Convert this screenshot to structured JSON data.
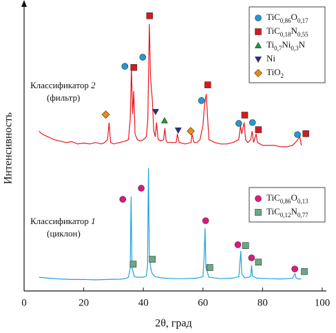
{
  "chart_data": {
    "type": "line",
    "xlabel": "2θ, град",
    "ylabel": "Интенсивность",
    "xlim": [
      0,
      100
    ],
    "xticks": [
      0,
      20,
      40,
      60,
      80,
      100
    ],
    "ylim": [
      0,
      100
    ],
    "series": [
      {
        "color": "#e8141c",
        "annotation": [
          "Классификатор 2",
          "(фильтр)"
        ],
        "legend": "upper right",
        "x": [
          5,
          6,
          7,
          8,
          9,
          10,
          12,
          14,
          16,
          18,
          20,
          22,
          24,
          26,
          27,
          28,
          28.5,
          29,
          30,
          32,
          34,
          35,
          35.6,
          36,
          36.4,
          36.8,
          37.2,
          38,
          39,
          40,
          41,
          41.5,
          42,
          42.4,
          43,
          43.5,
          44,
          44.4,
          45,
          46,
          46.8,
          47.2,
          47.6,
          48,
          50,
          51,
          51.4,
          52,
          54,
          56,
          56.3,
          57,
          58,
          59,
          60,
          60.5,
          61.1,
          61.6,
          62,
          64,
          66,
          68,
          70,
          72,
          72.6,
          73,
          73.8,
          74.3,
          75,
          76,
          76.5,
          77,
          77.8,
          78.3,
          80,
          82,
          84,
          86,
          88,
          90,
          91,
          92.5,
          93
        ],
        "values": [
          56,
          55,
          54.5,
          54,
          53.5,
          53,
          52.5,
          52,
          52.3,
          51.5,
          51.8,
          51.5,
          52,
          51.5,
          52,
          53,
          59,
          52,
          51.5,
          52,
          52.5,
          53,
          60,
          78,
          62,
          70,
          55,
          53,
          52.5,
          53,
          54,
          60,
          93.5,
          75,
          67,
          56,
          54,
          59,
          53,
          52.5,
          53,
          57,
          53,
          52,
          52,
          52,
          55,
          52,
          51.5,
          52,
          55,
          52,
          52,
          53,
          58,
          65,
          69,
          60,
          53,
          52,
          51.5,
          51.5,
          52,
          53,
          58,
          55,
          59,
          53,
          52,
          53,
          56,
          52,
          55,
          52,
          51,
          51,
          51,
          50.5,
          50.5,
          51,
          52,
          54,
          51
        ],
        "phases": [
          {
            "name": "TiC0,86O0,17",
            "marker": "circle",
            "color": "#1e9ad6",
            "x": [
              33.8,
              39.8,
              59.5,
              72.0,
              76.6,
              91.7
            ],
            "values": [
              78.7,
              81.9,
              66.7,
              58.7,
              59.0,
              54.8
            ]
          },
          {
            "name": "TiC0,18N0,55",
            "marker": "square",
            "color": "#d7191f",
            "x": [
              36.8,
              42.1,
              61.6,
              74.0,
              78.6,
              94.5
            ],
            "values": [
              78.3,
              96.4,
              72.2,
              61.6,
              56.5,
              55.1
            ]
          },
          {
            "name": "Ti0,7Ni0,3N",
            "marker": "triangle-up",
            "color": "#1a9a3a",
            "x": [
              47.1
            ],
            "values": [
              59.7
            ]
          },
          {
            "name": "Ni",
            "marker": "triangle-down",
            "color": "#2c2c8c",
            "x": [
              44.1,
              51.7
            ],
            "values": [
              62.8,
              56.3
            ]
          },
          {
            "name": "TiO2",
            "marker": "diamond",
            "color": "#f08a0b",
            "x": [
              27.4,
              55.9
            ],
            "values": [
              61.8,
              56.0
            ]
          }
        ]
      },
      {
        "color": "#1aa3dd",
        "annotation": [
          "Классификатор 1",
          "(циклон)"
        ],
        "legend": "center right",
        "x": [
          5,
          8,
          12,
          16,
          20,
          24,
          28,
          32,
          34,
          35,
          35.6,
          35.9,
          36.2,
          37,
          38,
          40,
          41,
          41.4,
          41.7,
          42,
          42.5,
          43,
          44,
          46,
          50,
          54,
          58,
          60,
          60.4,
          60.7,
          61,
          62,
          66,
          70,
          72,
          72.4,
          72.7,
          73,
          74,
          75,
          76,
          76.3,
          76.6,
          78,
          82,
          86,
          90,
          90.6,
          90.9,
          91.2,
          92,
          93
        ],
        "values": [
          4.8,
          4.5,
          4.2,
          4.0,
          4.0,
          3.9,
          4.0,
          4.1,
          4.3,
          4.8,
          8,
          33,
          8,
          5,
          4.8,
          4.8,
          5.2,
          9,
          43,
          12,
          8,
          6,
          5,
          4.6,
          4.3,
          4.3,
          4.5,
          5,
          12,
          22,
          8,
          4.8,
          4.3,
          4.5,
          5,
          10,
          14,
          6,
          4.6,
          4.8,
          5,
          9,
          5.2,
          4.5,
          4.3,
          4.2,
          4.4,
          5.5,
          6,
          4.6,
          4.2,
          4.2
        ],
        "phases": [
          {
            "name": "TiC0,86O0,13",
            "marker": "circle",
            "color": "#e0177f",
            "x": [
              33.1,
              39.3,
              60.9,
              71.7,
              76.3,
              90.8
            ],
            "values": [
              32.1,
              36.0,
              24.6,
              16.2,
              11.6,
              7.7
            ]
          },
          {
            "name": "TiC0,12N0,77",
            "marker": "square",
            "color": "#6aa884",
            "x": [
              36.6,
              43.0,
              62.3,
              74.3,
              78.6,
              94.0
            ],
            "values": [
              9.4,
              11.1,
              8.2,
              15.9,
              10.1,
              6.8
            ]
          }
        ]
      }
    ]
  }
}
